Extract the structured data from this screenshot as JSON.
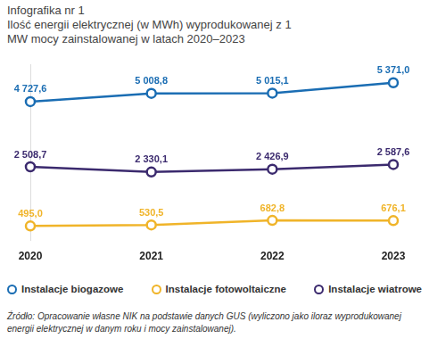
{
  "chart_data": {
    "type": "line",
    "title": "Infografika nr 1",
    "subtitle": "Ilość energii elektrycznej (w MWh) wyprodukowanej z 1 MW mocy zainstalowanej w latach 2020–2023",
    "categories": [
      "2020",
      "2021",
      "2022",
      "2023"
    ],
    "series": [
      {
        "name": "Instalacje biogazowe",
        "color": "#1a6db3",
        "values": [
          4727.6,
          5008.8,
          5015.1,
          5371.0
        ],
        "value_labels": [
          "4 727,6",
          "5 008,8",
          "5 015,1",
          "5 371,0"
        ]
      },
      {
        "name": "Instalacje fotowoltaiczne",
        "color": "#f0b429",
        "values": [
          495.0,
          530.5,
          682.8,
          676.1
        ],
        "value_labels": [
          "495,0",
          "530,5",
          "682,8",
          "676,1"
        ]
      },
      {
        "name": "Instalacje wiatrowe",
        "color": "#3b2a6e",
        "values": [
          2508.7,
          2330.1,
          2426.9,
          2587.6
        ],
        "value_labels": [
          "2 508,7",
          "2 330,1",
          "2 426,9",
          "2 587,6"
        ]
      }
    ],
    "ylim": [
      0,
      6000
    ],
    "tick_labels": "x",
    "grid": false,
    "legend": "bottom",
    "data_labels": true,
    "marker": "circle",
    "note": "Źródło: Opracowanie własne NIK na podstawie danych GUS (wyliczono jako iloraz wyprodukowanej energii elektrycznej w danym roku i mocy zainstalowanej)."
  }
}
